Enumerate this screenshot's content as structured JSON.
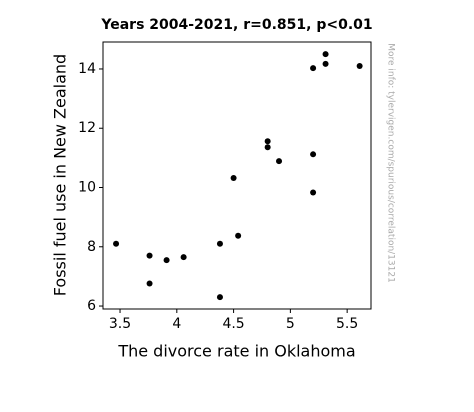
{
  "chart_data": {
    "type": "scatter",
    "title": "Years 2004-2021, r=0.851, p<0.01",
    "x_label": "The divorce rate in Oklahoma",
    "y_label": "Fossil fuel use in New Zealand",
    "note": "More info: tylervigen.com/spurious/correlation/13121",
    "color": "#000000",
    "x": [
      3.465,
      3.76,
      3.76,
      3.91,
      4.06,
      4.38,
      4.38,
      4.5,
      4.54,
      4.8,
      4.8,
      4.9,
      5.2,
      5.2,
      5.2,
      5.31,
      5.31,
      5.61
    ],
    "values": [
      8.1,
      7.7,
      6.76,
      7.55,
      7.65,
      8.1,
      6.3,
      10.32,
      8.37,
      11.56,
      11.36,
      10.89,
      14.03,
      11.12,
      9.83,
      14.5,
      14.17,
      14.1
    ],
    "xlim": [
      3.35,
      5.71
    ],
    "ylim": [
      5.9,
      14.91
    ],
    "xticks": [
      3.5,
      4,
      4.5,
      5,
      5.5
    ],
    "yticks": [
      6,
      8,
      10,
      12,
      14
    ]
  }
}
